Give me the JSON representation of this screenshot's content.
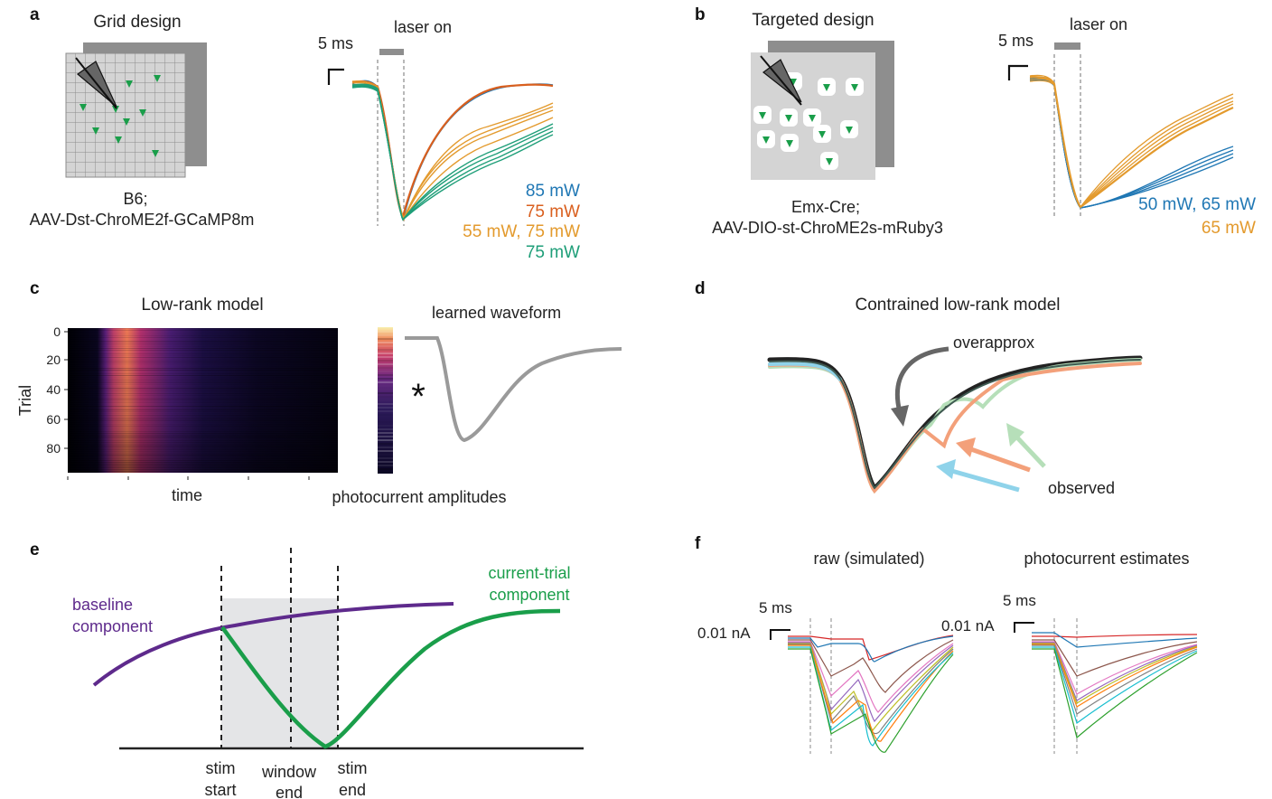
{
  "colors": {
    "blue": "#1f77b4",
    "vermillion": "#d95f1e",
    "orange": "#e39a2d",
    "teal": "#1e9e78",
    "green": "#1a9e4a",
    "purple": "#5e2a8c",
    "gray": "#999999",
    "skyblue": "#8fd3ea",
    "salmon": "#f3a07a",
    "mint": "#b6dfb9",
    "darkgreen": "#3f5b52"
  },
  "panel_a": {
    "letter": "a",
    "title": "Grid design",
    "caption_line1": "B6;",
    "caption_line2": "AAV-Dst-ChroME2f-GCaMP8m",
    "scale_label": "5 ms",
    "laser_label": "laser on",
    "legend": [
      "85 mW",
      "75 mW",
      "55 mW, 75 mW",
      "75 mW"
    ]
  },
  "panel_b": {
    "letter": "b",
    "title": "Targeted design",
    "caption_line1": "Emx-Cre;",
    "caption_line2": "AAV-DIO-st-ChroME2s-mRuby3",
    "scale_label": "5 ms",
    "laser_label": "laser on",
    "legend": [
      "50 mW, 65 mW",
      "65 mW"
    ]
  },
  "panel_c": {
    "letter": "c",
    "title": "Low-rank model",
    "ylabel": "Trial",
    "yticks": [
      "0",
      "20",
      "40",
      "60",
      "80"
    ],
    "xlabel": "time",
    "amp_label": "photocurrent amplitudes",
    "waveform_label": "learned waveform",
    "operator": "*"
  },
  "panel_d": {
    "letter": "d",
    "title": "Contrained low-rank model",
    "overapprox_label": "overapprox",
    "observed_label": "observed"
  },
  "panel_e": {
    "letter": "e",
    "baseline_line1": "baseline",
    "baseline_line2": "component",
    "current_line1": "current-trial",
    "current_line2": "component",
    "stim_start_line1": "stim",
    "stim_start_line2": "start",
    "window_end_line1": "window",
    "window_end_line2": "end",
    "stim_end_line1": "stim",
    "stim_end_line2": "end"
  },
  "panel_f": {
    "letter": "f",
    "title_left": "raw (simulated)",
    "title_right": "photocurrent estimates",
    "scale_time": "5 ms",
    "scale_amp": "0.01 nA"
  }
}
